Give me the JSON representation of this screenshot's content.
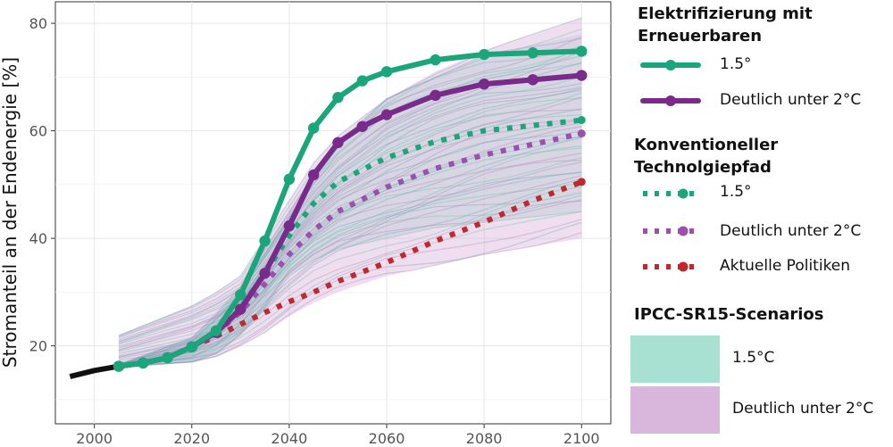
{
  "chart_data": {
    "type": "line",
    "ylabel": "Stromanteil an der Endenergie [%]",
    "xlabel": "",
    "xlim": [
      1992,
      2106
    ],
    "ylim": [
      5.5,
      84
    ],
    "xticks": [
      2000,
      2020,
      2040,
      2060,
      2080,
      2100
    ],
    "yticks": [
      20,
      40,
      60,
      80
    ],
    "grid": true,
    "legend_position": "right",
    "history": {
      "x": [
        1995,
        2000,
        2005
      ],
      "values": [
        14.3,
        15.4,
        16.2
      ]
    },
    "series": [
      {
        "name": "1.5°",
        "group": "Elektrifizierung mit Erneuerbaren",
        "style": "solid",
        "color": "#1aa57a",
        "x": [
          2005,
          2010,
          2015,
          2020,
          2025,
          2030,
          2035,
          2040,
          2045,
          2050,
          2055,
          2060,
          2070,
          2080,
          2090,
          2100
        ],
        "values": [
          16.2,
          16.8,
          17.8,
          19.8,
          22.8,
          29.5,
          39.5,
          51.0,
          60.5,
          66.2,
          69.3,
          71.0,
          73.2,
          74.2,
          74.5,
          74.8
        ]
      },
      {
        "name": "Deutlich unter 2°C",
        "group": "Elektrifizierung mit Erneuerbaren",
        "style": "solid",
        "color": "#7a2a8a",
        "x": [
          2005,
          2010,
          2015,
          2020,
          2025,
          2030,
          2035,
          2040,
          2045,
          2050,
          2055,
          2060,
          2070,
          2080,
          2090,
          2100
        ],
        "values": [
          16.2,
          16.8,
          17.8,
          19.8,
          22.5,
          26.8,
          33.5,
          42.3,
          51.8,
          57.8,
          60.8,
          63.0,
          66.6,
          68.7,
          69.5,
          70.3
        ]
      },
      {
        "name": "1.5°",
        "group": "Konventioneller Technolgiepfad",
        "style": "dotted",
        "color": "#1aa57a",
        "x": [
          2020,
          2025,
          2030,
          2035,
          2040,
          2045,
          2050,
          2060,
          2070,
          2080,
          2090,
          2100
        ],
        "values": [
          19.8,
          22.5,
          27.0,
          33.5,
          40.5,
          46.5,
          50.5,
          55.0,
          58.0,
          60.0,
          61.0,
          62.0
        ]
      },
      {
        "name": "Deutlich unter 2°C",
        "group": "Konventioneller Technolgiepfad",
        "style": "dotted",
        "color": "#9b4fae",
        "x": [
          2020,
          2025,
          2030,
          2035,
          2040,
          2045,
          2050,
          2060,
          2070,
          2080,
          2090,
          2100
        ],
        "values": [
          19.8,
          22.3,
          26.3,
          31.5,
          37.0,
          41.5,
          45.0,
          49.5,
          53.0,
          55.5,
          57.5,
          59.5
        ]
      },
      {
        "name": "Aktuelle Politiken",
        "group": "Konventioneller Technolgiepfad",
        "style": "dotted",
        "color": "#c0282d",
        "x": [
          2020,
          2025,
          2030,
          2035,
          2040,
          2045,
          2050,
          2060,
          2070,
          2080,
          2090,
          2100
        ],
        "values": [
          19.8,
          21.8,
          24.0,
          26.2,
          28.2,
          30.0,
          32.0,
          35.5,
          39.5,
          43.0,
          47.0,
          50.5
        ]
      }
    ],
    "bands": [
      {
        "name": "1.5°C",
        "color": "#a8e1d1",
        "x": [
          2005,
          2020,
          2025,
          2030,
          2035,
          2040,
          2045,
          2050,
          2060,
          2070,
          2080,
          2090,
          2100
        ],
        "lower": [
          16.0,
          17.0,
          18.5,
          22.0,
          27.0,
          33.0,
          36.0,
          38.0,
          40.0,
          42.0,
          43.0,
          44.0,
          45.0
        ],
        "upper": [
          16.5,
          21.5,
          26.0,
          31.0,
          38.0,
          45.0,
          52.0,
          58.0,
          66.0,
          70.0,
          74.0,
          76.0,
          78.0
        ]
      },
      {
        "name": "Deutlich unter 2°C",
        "color": "#d9b6dc",
        "x": [
          2005,
          2020,
          2025,
          2030,
          2035,
          2040,
          2045,
          2050,
          2060,
          2070,
          2080,
          2090,
          2100
        ],
        "lower": [
          16.0,
          17.0,
          18.0,
          20.0,
          22.5,
          25.5,
          28.0,
          30.0,
          33.0,
          35.0,
          37.0,
          38.5,
          40.0
        ],
        "upper": [
          22.0,
          27.5,
          30.0,
          33.0,
          40.0,
          47.0,
          54.0,
          59.0,
          66.0,
          71.0,
          75.0,
          78.0,
          81.0
        ]
      }
    ]
  },
  "legend": {
    "group1_title_line1": "Elektrifizierung mit",
    "group1_title_line2": "Erneuerbaren",
    "group1_item1": "1.5°",
    "group1_item2": "Deutlich unter 2°C",
    "group2_title_line1": "Konventioneller",
    "group2_title_line2": "Technolgiepfad",
    "group2_item1": "1.5°",
    "group2_item2": "Deutlich unter 2°C",
    "group2_item3": "Aktuelle Politiken",
    "group3_title": "IPCC-SR15-Scenarios",
    "group3_item1": "1.5°C",
    "group3_item2": "Deutlich unter 2°C"
  }
}
